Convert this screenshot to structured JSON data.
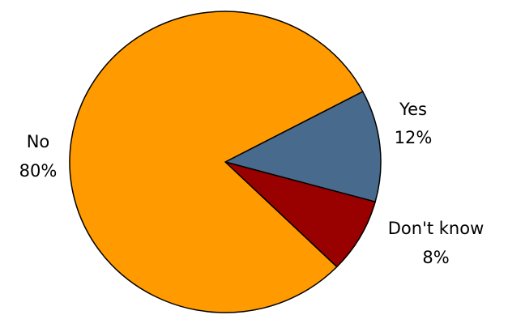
{
  "chart_data": {
    "type": "pie",
    "title": "",
    "legend": "none",
    "slices": [
      {
        "label": "Yes",
        "pct_label": "12%",
        "value": 12,
        "color": "#476a8d"
      },
      {
        "label": "Don't know",
        "pct_label": "8%",
        "value": 8,
        "color": "#990000"
      },
      {
        "label": "No",
        "pct_label": "80%",
        "value": 80,
        "color": "#ff9a00"
      }
    ]
  }
}
